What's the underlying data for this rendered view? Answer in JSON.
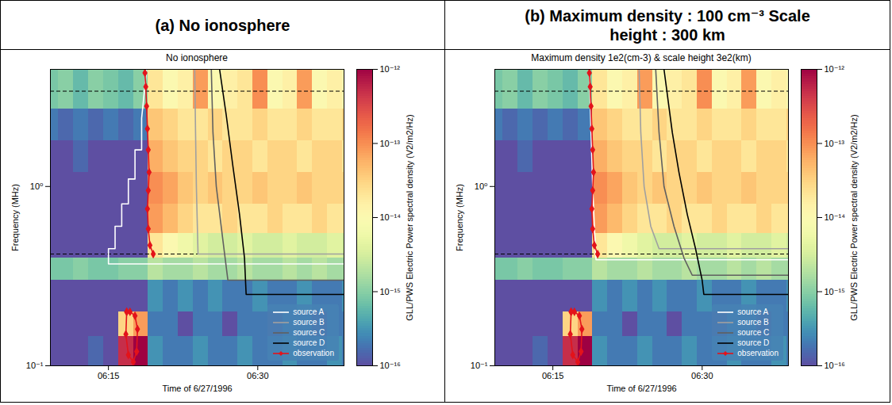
{
  "chart_data": [
    {
      "type": "heatmap",
      "title": "(a) No ionosphere",
      "subtitle": "No ionosphere",
      "x_label": "Time of 6/27/1996",
      "y_label": "Frequency (MHz)",
      "log": "y",
      "xlim": [
        "06:09:10",
        "06:38:40"
      ],
      "xticks": [
        {
          "value": "06:15:00",
          "label": "06:15"
        },
        {
          "value": "06:30:00",
          "label": "06:30"
        }
      ],
      "ylim": [
        0.1,
        4.5
      ],
      "yticks": [
        {
          "value": 0.1,
          "label": "10⁻¹"
        },
        {
          "value": 1,
          "label": "10⁰"
        }
      ],
      "hlines": [
        3.4,
        0.42
      ],
      "legend": "lower right",
      "colorbar": {
        "label": "GLL/PWS Electric Power spectral density (V2/m2/Hz)",
        "lim": [
          1e-16,
          1e-12
        ],
        "ticks": [
          {
            "value": 1e-16,
            "label": "10⁻¹⁶"
          },
          {
            "value": 1e-15,
            "label": "10⁻¹⁵"
          },
          {
            "value": 1e-14,
            "label": "10⁻¹⁴"
          },
          {
            "value": 1e-13,
            "label": "10⁻¹³"
          },
          {
            "value": 1e-12,
            "label": "10⁻¹²"
          }
        ]
      },
      "cells": {
        "x_edges": [
          "06:08:30",
          "06:10:00",
          "06:11:30",
          "06:13:00",
          "06:14:30",
          "06:16:00",
          "06:17:30",
          "06:19:00",
          "06:20:30",
          "06:22:00",
          "06:23:30",
          "06:25:00",
          "06:26:30",
          "06:28:00",
          "06:29:30",
          "06:31:00",
          "06:32:30",
          "06:34:00",
          "06:35:30",
          "06:37:00",
          "06:38:30",
          "06:40:00"
        ],
        "y_edges": [
          0.1,
          0.146,
          0.2,
          0.3,
          0.4,
          0.55,
          0.8,
          1.2,
          1.8,
          2.7,
          4.5
        ],
        "values": [
          [
            1e-16,
            1e-16,
            1e-16,
            1.5e-16,
            1e-16,
            5e-13,
            1e-12,
            3e-16,
            2e-16,
            2e-16,
            3e-16,
            2e-16,
            2e-16,
            3e-16,
            2e-16,
            2e-16,
            3e-16,
            2e-16,
            2e-16,
            3e-16,
            2e-16
          ],
          [
            1e-16,
            1e-16,
            1e-16,
            1e-16,
            1e-16,
            3e-14,
            8e-14,
            2e-16,
            2e-16,
            1e-16,
            2e-16,
            2e-16,
            1e-16,
            2e-16,
            2e-16,
            1e-16,
            2e-16,
            2e-16,
            1e-16,
            2e-16,
            2e-16
          ],
          [
            1e-16,
            1e-16,
            1e-16,
            1e-16,
            1e-16,
            1e-16,
            1e-16,
            3e-16,
            2e-16,
            3e-16,
            2e-16,
            3e-16,
            2e-16,
            2e-16,
            3e-16,
            2e-16,
            2e-16,
            3e-16,
            2e-16,
            2e-16,
            3e-16
          ],
          [
            8e-16,
            8e-16,
            1e-15,
            8e-16,
            8e-16,
            1e-15,
            1e-15,
            2e-15,
            1.5e-15,
            1.5e-15,
            2e-15,
            1.5e-15,
            1.5e-15,
            2e-15,
            1.5e-15,
            1.5e-15,
            2e-15,
            1.5e-15,
            2e-15,
            1.5e-15,
            1.5e-15
          ],
          [
            1e-16,
            1e-16,
            1e-16,
            1e-16,
            1e-16,
            1e-16,
            1e-16,
            2e-14,
            1e-14,
            6e-15,
            4e-15,
            3e-15,
            3e-15,
            4e-15,
            3e-15,
            3e-15,
            4e-15,
            3e-15,
            3e-15,
            4e-15,
            3e-15
          ],
          [
            1e-16,
            1e-16,
            1e-16,
            1e-16,
            1e-16,
            1e-16,
            1e-16,
            8e-14,
            5e-14,
            3e-14,
            2e-14,
            2e-14,
            3e-14,
            2e-14,
            2e-14,
            3e-14,
            2e-14,
            2e-14,
            3e-14,
            2e-14,
            2e-14
          ],
          [
            1e-16,
            1e-16,
            1e-16,
            1e-16,
            1e-16,
            1e-16,
            1e-16,
            1e-13,
            7e-14,
            4e-14,
            3e-14,
            4e-14,
            3e-14,
            3e-14,
            4e-14,
            3e-14,
            3e-14,
            4e-14,
            3e-14,
            3e-14,
            3e-14
          ],
          [
            1e-16,
            1e-16,
            1.5e-16,
            1e-16,
            1e-16,
            1e-16,
            1e-16,
            6e-14,
            4e-14,
            3e-14,
            3e-14,
            2e-14,
            3e-14,
            3e-14,
            2e-14,
            3e-14,
            3e-14,
            2e-14,
            3e-14,
            3e-14,
            2e-14
          ],
          [
            2e-16,
            1.5e-16,
            2e-16,
            1.5e-16,
            2e-16,
            1.5e-16,
            2e-16,
            4e-14,
            3e-14,
            2e-14,
            2e-14,
            3e-14,
            2e-14,
            2e-14,
            3e-14,
            2e-14,
            2e-14,
            3e-14,
            2e-14,
            2e-14,
            3e-14
          ],
          [
            8e-16,
            1e-15,
            6e-16,
            1e-15,
            8e-16,
            6e-16,
            1e-15,
            2e-14,
            1e-14,
            1.5e-14,
            8e-14,
            1e-14,
            1.5e-14,
            2e-14,
            1e-13,
            1e-14,
            1.5e-14,
            8e-14,
            1e-14,
            1.5e-14,
            1e-14
          ]
        ]
      },
      "series": [
        {
          "name": "source A",
          "color": "#ffffff",
          "type": "line",
          "x": [
            "06:38:40",
            "06:15:00",
            "06:15:00",
            "06:15:40",
            "06:15:40",
            "06:16:20",
            "06:16:20",
            "06:17:00",
            "06:17:00",
            "06:17:40",
            "06:17:40",
            "06:18:20",
            "06:18:20",
            "06:18:50"
          ],
          "values": [
            0.37,
            0.37,
            0.45,
            0.45,
            0.6,
            0.6,
            0.8,
            0.8,
            1.1,
            1.1,
            1.6,
            1.6,
            2.4,
            4.5
          ]
        },
        {
          "name": "source B",
          "color": "#a0a0a0",
          "type": "line",
          "x": [
            "06:23:40",
            "06:23:45",
            "06:23:50",
            "06:24:00",
            "06:38:40"
          ],
          "values": [
            4.5,
            2,
            1,
            0.42,
            0.42
          ]
        },
        {
          "name": "source C",
          "color": "#606060",
          "type": "line",
          "x": [
            "06:25:20",
            "06:25:30",
            "06:25:50",
            "06:26:30",
            "06:27:00",
            "06:38:40"
          ],
          "values": [
            4.5,
            2,
            1,
            0.5,
            0.3,
            0.3
          ]
        },
        {
          "name": "source D",
          "color": "#000000",
          "type": "line",
          "x": [
            "06:26:10",
            "06:26:50",
            "06:27:30",
            "06:28:10",
            "06:28:40",
            "06:28:50",
            "06:38:40"
          ],
          "values": [
            4.5,
            2.5,
            1.3,
            0.7,
            0.4,
            0.25,
            0.25
          ]
        },
        {
          "name": "observation",
          "color": "#e3131b",
          "type": "line",
          "marker": "diamond",
          "x": [
            "06:18:40",
            "06:18:45",
            "06:18:50",
            "06:18:55",
            "06:19:00",
            "06:19:05",
            "06:19:00",
            "06:18:55",
            "06:19:00",
            "06:19:10",
            "06:19:30",
            null,
            "06:16:50",
            "06:16:45",
            "06:17:00",
            "06:17:30",
            "06:17:50",
            "06:17:55",
            "06:17:40",
            "06:17:10",
            "06:16:50"
          ],
          "values": [
            4.3,
            3.6,
            2.8,
            2.1,
            1.6,
            1.2,
            0.95,
            0.75,
            0.58,
            0.47,
            0.42,
            null,
            0.2,
            0.15,
            0.115,
            0.105,
            0.12,
            0.16,
            0.19,
            0.2,
            0.2
          ]
        }
      ]
    },
    {
      "type": "heatmap",
      "title": "(b) Maximum density : 100 cm⁻³ Scale height : 300 km",
      "subtitle": "Maximum density 1e2(cm-3) & scale height 3e2(km)",
      "x_label": "Time of 6/27/1996",
      "y_label": "Frequency (MHz)",
      "log": "y",
      "xlim": [
        "06:09:10",
        "06:38:40"
      ],
      "xticks": [
        {
          "value": "06:15:00",
          "label": "06:15"
        },
        {
          "value": "06:30:00",
          "label": "06:30"
        }
      ],
      "ylim": [
        0.1,
        4.5
      ],
      "yticks": [
        {
          "value": 0.1,
          "label": "10⁻¹"
        },
        {
          "value": 1,
          "label": "10⁰"
        }
      ],
      "hlines": [
        3.4,
        0.42
      ],
      "legend": "lower right",
      "colorbar": {
        "label": "GLL/PWS Electric Power spectral density (V2/m2/Hz)",
        "lim": [
          1e-16,
          1e-12
        ],
        "ticks": [
          {
            "value": 1e-16,
            "label": "10⁻¹⁶"
          },
          {
            "value": 1e-15,
            "label": "10⁻¹⁵"
          },
          {
            "value": 1e-14,
            "label": "10⁻¹⁴"
          },
          {
            "value": 1e-13,
            "label": "10⁻¹³"
          },
          {
            "value": 1e-12,
            "label": "10⁻¹²"
          }
        ]
      },
      "cells": {
        "x_edges": [
          "06:08:30",
          "06:10:00",
          "06:11:30",
          "06:13:00",
          "06:14:30",
          "06:16:00",
          "06:17:30",
          "06:19:00",
          "06:20:30",
          "06:22:00",
          "06:23:30",
          "06:25:00",
          "06:26:30",
          "06:28:00",
          "06:29:30",
          "06:31:00",
          "06:32:30",
          "06:34:00",
          "06:35:30",
          "06:37:00",
          "06:38:30",
          "06:40:00"
        ],
        "y_edges": [
          0.1,
          0.146,
          0.2,
          0.3,
          0.4,
          0.55,
          0.8,
          1.2,
          1.8,
          2.7,
          4.5
        ],
        "values": [
          [
            1e-16,
            1e-16,
            1e-16,
            1.5e-16,
            1e-16,
            5e-13,
            1e-12,
            3e-16,
            2e-16,
            2e-16,
            3e-16,
            2e-16,
            2e-16,
            3e-16,
            2e-16,
            2e-16,
            3e-16,
            2e-16,
            2e-16,
            3e-16,
            2e-16
          ],
          [
            1e-16,
            1e-16,
            1e-16,
            1e-16,
            1e-16,
            3e-14,
            8e-14,
            2e-16,
            2e-16,
            1e-16,
            2e-16,
            2e-16,
            1e-16,
            2e-16,
            2e-16,
            1e-16,
            2e-16,
            2e-16,
            1e-16,
            2e-16,
            2e-16
          ],
          [
            1e-16,
            1e-16,
            1e-16,
            1e-16,
            1e-16,
            1e-16,
            1e-16,
            3e-16,
            2e-16,
            3e-16,
            2e-16,
            3e-16,
            2e-16,
            2e-16,
            3e-16,
            2e-16,
            2e-16,
            3e-16,
            2e-16,
            2e-16,
            3e-16
          ],
          [
            8e-16,
            8e-16,
            1e-15,
            8e-16,
            8e-16,
            1e-15,
            1e-15,
            2e-15,
            1.5e-15,
            1.5e-15,
            2e-15,
            1.5e-15,
            1.5e-15,
            2e-15,
            1.5e-15,
            1.5e-15,
            2e-15,
            1.5e-15,
            2e-15,
            1.5e-15,
            1.5e-15
          ],
          [
            1e-16,
            1e-16,
            1e-16,
            1e-16,
            1e-16,
            1e-16,
            1e-16,
            2e-14,
            1e-14,
            6e-15,
            4e-15,
            3e-15,
            3e-15,
            4e-15,
            3e-15,
            3e-15,
            4e-15,
            3e-15,
            3e-15,
            4e-15,
            3e-15
          ],
          [
            1e-16,
            1e-16,
            1e-16,
            1e-16,
            1e-16,
            1e-16,
            1e-16,
            8e-14,
            5e-14,
            3e-14,
            2e-14,
            2e-14,
            3e-14,
            2e-14,
            2e-14,
            3e-14,
            2e-14,
            2e-14,
            3e-14,
            2e-14,
            2e-14
          ],
          [
            1e-16,
            1e-16,
            1e-16,
            1e-16,
            1e-16,
            1e-16,
            1e-16,
            1e-13,
            7e-14,
            4e-14,
            3e-14,
            4e-14,
            3e-14,
            3e-14,
            4e-14,
            3e-14,
            3e-14,
            4e-14,
            3e-14,
            3e-14,
            3e-14
          ],
          [
            1e-16,
            1e-16,
            1.5e-16,
            1e-16,
            1e-16,
            1e-16,
            1e-16,
            6e-14,
            4e-14,
            3e-14,
            3e-14,
            2e-14,
            3e-14,
            3e-14,
            2e-14,
            3e-14,
            3e-14,
            2e-14,
            3e-14,
            3e-14,
            2e-14
          ],
          [
            2e-16,
            1.5e-16,
            2e-16,
            1.5e-16,
            2e-16,
            1.5e-16,
            2e-16,
            4e-14,
            3e-14,
            2e-14,
            2e-14,
            3e-14,
            2e-14,
            2e-14,
            3e-14,
            2e-14,
            2e-14,
            3e-14,
            2e-14,
            2e-14,
            3e-14
          ],
          [
            8e-16,
            1e-15,
            6e-16,
            1e-15,
            8e-16,
            6e-16,
            1e-15,
            2e-14,
            1e-14,
            1.5e-14,
            8e-14,
            1e-14,
            1.5e-14,
            2e-14,
            1e-13,
            1e-14,
            1.5e-14,
            8e-14,
            1e-14,
            1.5e-14,
            1e-14
          ]
        ]
      },
      "series": [
        {
          "name": "source A",
          "color": "#ffffff",
          "type": "line",
          "x": [
            "06:38:40",
            "06:19:20",
            "06:19:10",
            "06:19:00",
            "06:18:50",
            "06:18:40"
          ],
          "values": [
            0.39,
            0.39,
            0.6,
            1,
            2,
            4.5
          ]
        },
        {
          "name": "source B",
          "color": "#a0a0a0",
          "type": "line",
          "x": [
            "06:23:40",
            "06:23:50",
            "06:24:10",
            "06:24:50",
            "06:25:40",
            "06:38:40"
          ],
          "values": [
            4.5,
            2,
            1,
            0.6,
            0.45,
            0.45
          ]
        },
        {
          "name": "source C",
          "color": "#606060",
          "type": "line",
          "x": [
            "06:25:20",
            "06:25:40",
            "06:26:10",
            "06:27:10",
            "06:28:10",
            "06:29:00",
            "06:38:40"
          ],
          "values": [
            4.5,
            2,
            1,
            0.6,
            0.4,
            0.32,
            0.32
          ]
        },
        {
          "name": "source D",
          "color": "#000000",
          "type": "line",
          "x": [
            "06:26:10",
            "06:27:00",
            "06:27:40",
            "06:28:30",
            "06:29:20",
            "06:30:00",
            "06:30:10",
            "06:38:40"
          ],
          "values": [
            4.5,
            2,
            1.2,
            0.7,
            0.45,
            0.3,
            0.25,
            0.25
          ]
        },
        {
          "name": "observation",
          "color": "#e3131b",
          "type": "line",
          "marker": "diamond",
          "x": [
            "06:18:40",
            "06:18:45",
            "06:18:50",
            "06:18:55",
            "06:19:00",
            "06:19:05",
            "06:19:00",
            "06:18:55",
            "06:19:00",
            "06:19:10",
            "06:19:30",
            null,
            "06:16:50",
            "06:16:45",
            "06:17:00",
            "06:17:30",
            "06:17:50",
            "06:17:55",
            "06:17:40",
            "06:17:10",
            "06:16:50"
          ],
          "values": [
            4.3,
            3.6,
            2.8,
            2.1,
            1.6,
            1.2,
            0.95,
            0.75,
            0.58,
            0.47,
            0.42,
            null,
            0.2,
            0.15,
            0.115,
            0.105,
            0.12,
            0.16,
            0.19,
            0.2,
            0.2
          ]
        }
      ]
    }
  ]
}
